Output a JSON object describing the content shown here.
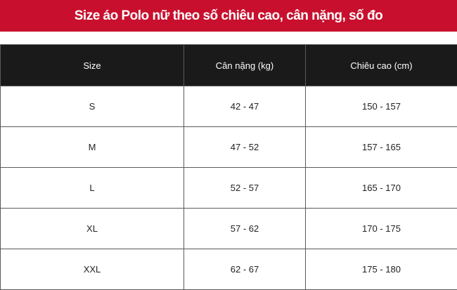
{
  "title": "Size áo Polo nữ theo số chiêu cao, cân nặng, số đo",
  "colors": {
    "banner": "#c8102e",
    "header": "#1a1a1a"
  },
  "table": {
    "headers": [
      "Size",
      "Cân nặng (kg)",
      "Chiêu cao (cm)"
    ],
    "rows": [
      [
        "S",
        "42 - 47",
        "150 - 157"
      ],
      [
        "M",
        "47 - 52",
        "157 - 165"
      ],
      [
        "L",
        "52 - 57",
        "165 - 170"
      ],
      [
        "XL",
        "57 - 62",
        "170 - 175"
      ],
      [
        "XXL",
        "62 - 67",
        "175 - 180"
      ]
    ]
  }
}
